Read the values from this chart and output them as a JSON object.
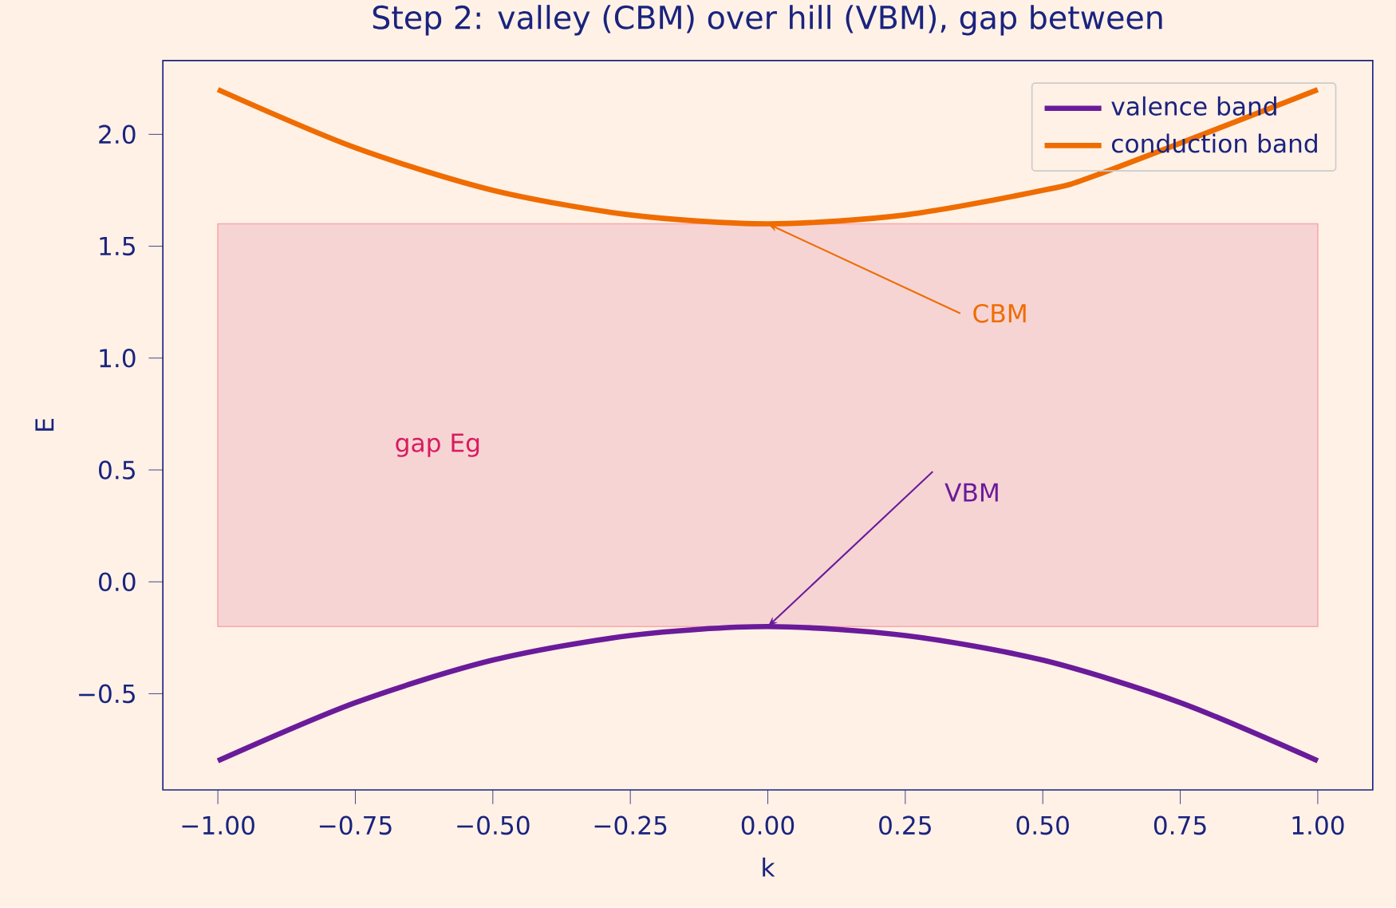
{
  "chart_data": {
    "type": "line",
    "title": "Step 2: valley (CBM) over hill (VBM), gap between",
    "xlabel": "k",
    "ylabel": "E",
    "x": [
      -1.0,
      -0.75,
      -0.5,
      -0.25,
      0.0,
      0.25,
      0.5,
      0.75,
      1.0
    ],
    "series": [
      {
        "name": "valence band",
        "color": "#6a1b9a",
        "values": [
          -0.8,
          -0.54,
          -0.35,
          -0.24,
          -0.2,
          -0.24,
          -0.35,
          -0.54,
          -0.8
        ]
      },
      {
        "name": "conduction band",
        "color": "#ef6c00",
        "x": [
          -1.0,
          -0.75,
          -0.5,
          -0.25,
          0.0,
          0.25,
          0.5,
          0.6,
          1.0
        ],
        "values": [
          2.2,
          1.94,
          1.75,
          1.64,
          1.6,
          1.64,
          1.75,
          1.82,
          2.2
        ]
      }
    ],
    "bands": [
      {
        "axis": "y",
        "from": -0.2,
        "to": 1.6,
        "label": "gap  Eg",
        "color": "#f7d4d4"
      }
    ],
    "annotations": [
      {
        "text": "CBM",
        "x": 0.0,
        "y": 1.6
      },
      {
        "text": "VBM",
        "x": 0.0,
        "y": -0.2
      }
    ],
    "xlim": [
      -1.1,
      1.1
    ],
    "ylim": [
      -0.93,
      2.33
    ],
    "xticks": [
      {
        "value": -1.0,
        "label": "−1.00"
      },
      {
        "value": -0.75,
        "label": "−0.75"
      },
      {
        "value": -0.5,
        "label": "−0.50"
      },
      {
        "value": -0.25,
        "label": "−0.25"
      },
      {
        "value": 0.0,
        "label": "0.00"
      },
      {
        "value": 0.25,
        "label": "0.25"
      },
      {
        "value": 0.5,
        "label": "0.50"
      },
      {
        "value": 0.75,
        "label": "0.75"
      },
      {
        "value": 1.0,
        "label": "1.00"
      }
    ],
    "yticks": [
      {
        "value": -0.5,
        "label": "−0.5"
      },
      {
        "value": 0.0,
        "label": "0.0"
      },
      {
        "value": 0.5,
        "label": "0.5"
      },
      {
        "value": 1.0,
        "label": "1.0"
      },
      {
        "value": 1.5,
        "label": "1.5"
      },
      {
        "value": 2.0,
        "label": "2.0"
      }
    ],
    "legend": "top right",
    "grid": false,
    "marker": "none",
    "line_style": "solid"
  }
}
